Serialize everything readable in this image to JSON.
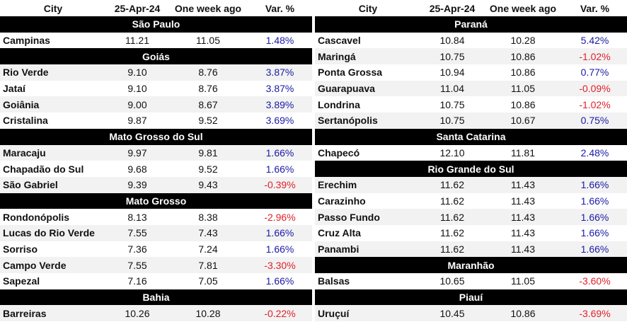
{
  "headers": {
    "city": "City",
    "date": "25-Apr-24",
    "week": "One week ago",
    "var": "Var. %"
  },
  "left": [
    {
      "region": "São Paulo",
      "rows": [
        {
          "city": "Campinas",
          "now": "11.21",
          "prev": "11.05",
          "var": "1.48%",
          "dir": "pos"
        }
      ]
    },
    {
      "region": "Goiás",
      "rows": [
        {
          "city": "Rio Verde",
          "now": "9.10",
          "prev": "8.76",
          "var": "3.87%",
          "dir": "pos"
        },
        {
          "city": "Jataí",
          "now": "9.10",
          "prev": "8.76",
          "var": "3.87%",
          "dir": "pos"
        },
        {
          "city": "Goiânia",
          "now": "9.00",
          "prev": "8.67",
          "var": "3.89%",
          "dir": "pos"
        },
        {
          "city": "Cristalina",
          "now": "9.87",
          "prev": "9.52",
          "var": "3.69%",
          "dir": "pos"
        }
      ]
    },
    {
      "region": "Mato Grosso do Sul",
      "rows": [
        {
          "city": "Maracaju",
          "now": "9.97",
          "prev": "9.81",
          "var": "1.66%",
          "dir": "pos"
        },
        {
          "city": "Chapadão do Sul",
          "now": "9.68",
          "prev": "9.52",
          "var": "1.66%",
          "dir": "pos"
        },
        {
          "city": "São Gabriel",
          "now": "9.39",
          "prev": "9.43",
          "var": "-0.39%",
          "dir": "neg"
        }
      ]
    },
    {
      "region": "Mato Grosso",
      "rows": [
        {
          "city": "Rondonópolis",
          "now": "8.13",
          "prev": "8.38",
          "var": "-2.96%",
          "dir": "neg"
        },
        {
          "city": "Lucas do Rio Verde",
          "now": "7.55",
          "prev": "7.43",
          "var": "1.66%",
          "dir": "pos"
        },
        {
          "city": "Sorriso",
          "now": "7.36",
          "prev": "7.24",
          "var": "1.66%",
          "dir": "pos"
        },
        {
          "city": "Campo Verde",
          "now": "7.55",
          "prev": "7.81",
          "var": "-3.30%",
          "dir": "neg"
        },
        {
          "city": "Sapezal",
          "now": "7.16",
          "prev": "7.05",
          "var": "1.66%",
          "dir": "pos"
        }
      ]
    },
    {
      "region": "Bahia",
      "rows": [
        {
          "city": "Barreiras",
          "now": "10.26",
          "prev": "10.28",
          "var": "-0.22%",
          "dir": "neg"
        }
      ]
    }
  ],
  "right": [
    {
      "region": "Paraná",
      "rows": [
        {
          "city": "Cascavel",
          "now": "10.84",
          "prev": "10.28",
          "var": "5.42%",
          "dir": "pos"
        },
        {
          "city": "Maringá",
          "now": "10.75",
          "prev": "10.86",
          "var": "-1.02%",
          "dir": "neg"
        },
        {
          "city": "Ponta Grossa",
          "now": "10.94",
          "prev": "10.86",
          "var": "0.77%",
          "dir": "pos"
        },
        {
          "city": "Guarapuava",
          "now": "11.04",
          "prev": "11.05",
          "var": "-0.09%",
          "dir": "neg"
        },
        {
          "city": "Londrina",
          "now": "10.75",
          "prev": "10.86",
          "var": "-1.02%",
          "dir": "neg"
        },
        {
          "city": "Sertanópolis",
          "now": "10.75",
          "prev": "10.67",
          "var": "0.75%",
          "dir": "pos"
        }
      ]
    },
    {
      "region": "Santa Catarina",
      "rows": [
        {
          "city": "Chapecó",
          "now": "12.10",
          "prev": "11.81",
          "var": "2.48%",
          "dir": "pos"
        }
      ]
    },
    {
      "region": "Rio Grande do Sul",
      "rows": [
        {
          "city": "Erechim",
          "now": "11.62",
          "prev": "11.43",
          "var": "1.66%",
          "dir": "pos"
        },
        {
          "city": "Carazinho",
          "now": "11.62",
          "prev": "11.43",
          "var": "1.66%",
          "dir": "pos"
        },
        {
          "city": "Passo Fundo",
          "now": "11.62",
          "prev": "11.43",
          "var": "1.66%",
          "dir": "pos"
        },
        {
          "city": "Cruz Alta",
          "now": "11.62",
          "prev": "11.43",
          "var": "1.66%",
          "dir": "pos"
        },
        {
          "city": "Panambi",
          "now": "11.62",
          "prev": "11.43",
          "var": "1.66%",
          "dir": "pos"
        }
      ]
    },
    {
      "region": "Maranhão",
      "rows": [
        {
          "city": "Balsas",
          "now": "10.65",
          "prev": "11.05",
          "var": "-3.60%",
          "dir": "neg"
        }
      ]
    },
    {
      "region": "Piauí",
      "rows": [
        {
          "city": "Uruçuí",
          "now": "10.45",
          "prev": "10.86",
          "var": "-3.69%",
          "dir": "neg"
        }
      ]
    }
  ]
}
